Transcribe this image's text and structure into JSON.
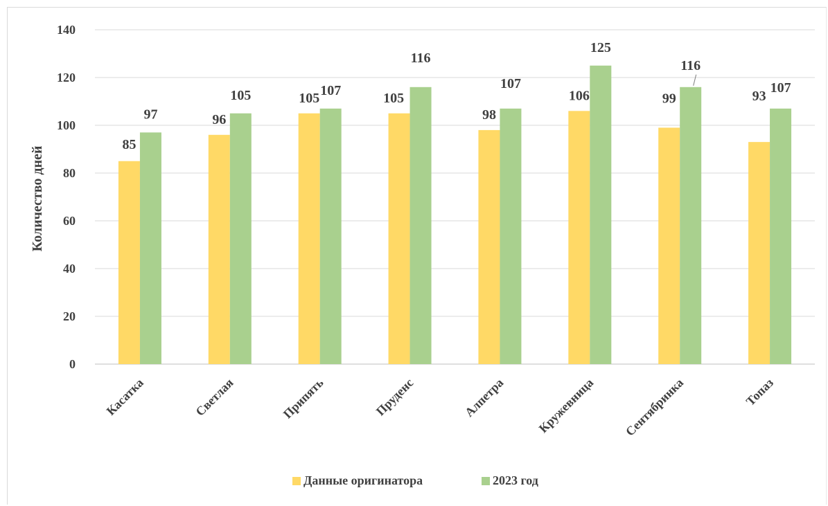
{
  "chart_data": {
    "type": "bar",
    "title": "",
    "xlabel": "",
    "ylabel": "Количество дней",
    "ylim": [
      0,
      140
    ],
    "yticks": [
      0,
      20,
      40,
      60,
      80,
      100,
      120,
      140
    ],
    "grid": true,
    "legend_position": "bottom",
    "categories": [
      "Касатка",
      "Светлая",
      "Припять",
      "Пруденс",
      "Алпетра",
      "Кружевница",
      "Сентябринка",
      "Топаз"
    ],
    "series": [
      {
        "name": "Данные оригинатора",
        "color": "#ffd966",
        "values": [
          85,
          96,
          105,
          105,
          98,
          106,
          99,
          93
        ]
      },
      {
        "name": "2023 год",
        "color": "#a9d08e",
        "values": [
          97,
          105,
          107,
          116,
          107,
          125,
          116,
          107
        ]
      }
    ]
  }
}
